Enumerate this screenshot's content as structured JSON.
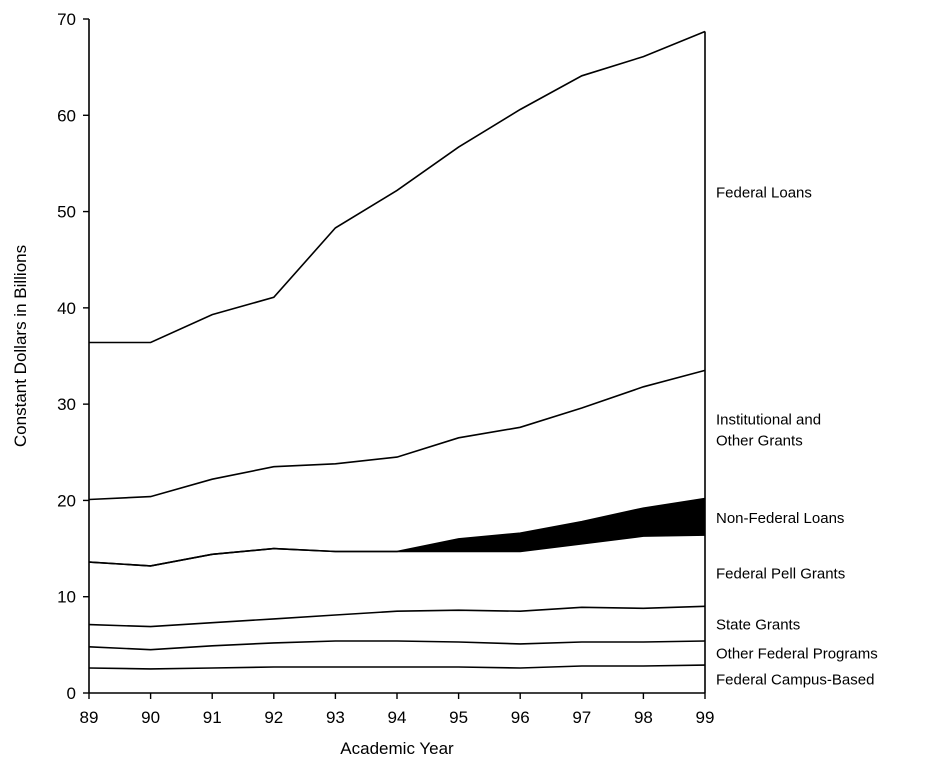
{
  "chart_data": {
    "type": "area",
    "x": [
      "89",
      "90",
      "91",
      "92",
      "93",
      "94",
      "95",
      "96",
      "97",
      "98",
      "99"
    ],
    "xlabel": "Academic Year",
    "ylabel": "Constant Dollars in Billions",
    "ylim": [
      0,
      70
    ],
    "yticks": [
      "0",
      "10",
      "20",
      "30",
      "40",
      "50",
      "60",
      "70"
    ],
    "grid": false,
    "legend": "labels at right end of series",
    "cumulative_boundaries": [
      {
        "name": "Federal Campus-Based",
        "values": [
          2.6,
          2.5,
          2.6,
          2.7,
          2.7,
          2.7,
          2.7,
          2.6,
          2.8,
          2.8,
          2.9
        ]
      },
      {
        "name": "Other Federal Programs",
        "values": [
          4.8,
          4.5,
          4.9,
          5.2,
          5.4,
          5.4,
          5.3,
          5.1,
          5.3,
          5.3,
          5.4
        ]
      },
      {
        "name": "State Grants",
        "values": [
          7.1,
          6.9,
          7.3,
          7.7,
          8.1,
          8.5,
          8.6,
          8.5,
          8.9,
          8.8,
          9.0
        ]
      },
      {
        "name": "Federal Pell Grants",
        "values": [
          13.6,
          13.2,
          14.4,
          15.0,
          14.7,
          14.7,
          14.7,
          14.7,
          15.5,
          16.3,
          16.4
        ]
      },
      {
        "name": "Non-Federal Loans",
        "values": [
          13.6,
          13.2,
          14.4,
          15.0,
          14.7,
          14.7,
          16.0,
          16.6,
          17.8,
          19.2,
          20.2
        ]
      },
      {
        "name": "Institutional and Other Grants",
        "values": [
          20.1,
          20.4,
          22.2,
          23.5,
          23.8,
          24.5,
          26.5,
          27.6,
          29.6,
          31.8,
          33.5
        ]
      },
      {
        "name": "Federal Loans",
        "values": [
          36.4,
          36.4,
          39.3,
          41.1,
          48.3,
          52.2,
          56.7,
          60.6,
          64.1,
          66.1,
          68.7
        ]
      }
    ],
    "series_labels": [
      {
        "series": "Federal Loans",
        "lines": [
          "Federal Loans"
        ],
        "y": 52
      },
      {
        "series": "Institutional and Other Grants",
        "lines": [
          "Institutional and",
          "Other Grants"
        ],
        "y": 27.3
      },
      {
        "series": "Non-Federal Loans",
        "lines": [
          "Non-Federal Loans"
        ],
        "y": 18.2
      },
      {
        "series": "Federal Pell Grants",
        "lines": [
          "Federal Pell Grants"
        ],
        "y": 12.4
      },
      {
        "series": "State Grants",
        "lines": [
          "State Grants"
        ],
        "y": 7.1
      },
      {
        "series": "Other Federal Programs",
        "lines": [
          "Other Federal Programs"
        ],
        "y": 4.1
      },
      {
        "series": "Federal Campus-Based",
        "lines": [
          "Federal Campus-Based"
        ],
        "y": 1.4
      }
    ],
    "filled_series": "Non-Federal Loans",
    "fill_color": "#000000",
    "line_color": "#000000"
  }
}
